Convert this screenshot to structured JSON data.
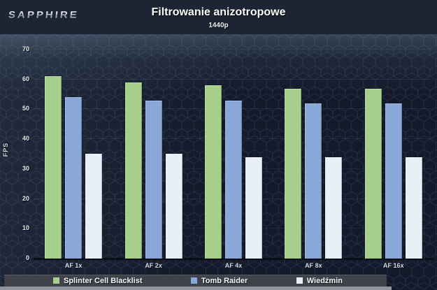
{
  "header": {
    "logo": "SAPPHIRE",
    "title": "Filtrowanie anizotropowe",
    "subtitle": "1440p"
  },
  "chart_data": {
    "type": "bar",
    "title": "Filtrowanie anizotropowe",
    "subtitle": "1440p",
    "categories": [
      "AF 1x",
      "AF 2x",
      "AF 4x",
      "AF 8x",
      "AF 16x"
    ],
    "series": [
      {
        "name": "Splinter Cell Blacklist",
        "color": "#a6cf8b",
        "values": [
          61,
          59,
          58,
          57,
          57
        ]
      },
      {
        "name": "Tomb Raider",
        "color": "#8aa7da",
        "values": [
          54,
          53,
          53,
          52,
          52
        ]
      },
      {
        "name": "Wiedźmin",
        "color": "#e9eff6",
        "values": [
          35,
          35,
          34,
          34,
          34
        ]
      }
    ],
    "xlabel": "",
    "ylabel": "FPS",
    "ylim": [
      0,
      70
    ],
    "yticks": [
      0,
      10,
      20,
      30,
      40,
      50,
      60,
      70
    ],
    "grid": "faint-horizontal",
    "legend_position": "bottom"
  },
  "colors": {
    "header_bg": "#1d2434",
    "chart_bg": "#131a29",
    "hex_outline": "#273149",
    "legend_bg": "#3f4349",
    "bottom_strip": "#90959d",
    "axis_line": "#0a0e17"
  }
}
